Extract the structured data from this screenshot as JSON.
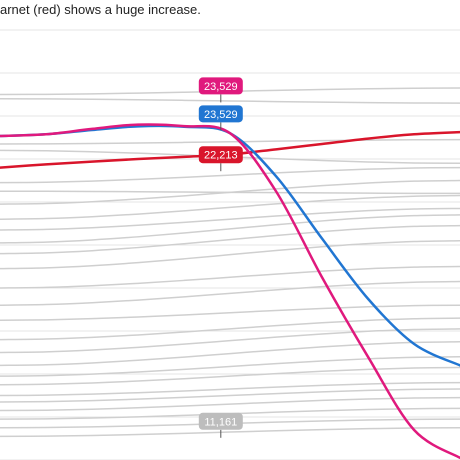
{
  "caption": "arnet (red) shows a huge increase.",
  "chart_data": {
    "type": "line",
    "title": "",
    "xlabel": "",
    "ylabel": "",
    "grid": true,
    "ylim": [
      8000,
      28000
    ],
    "xlim": [
      0,
      10
    ],
    "colors": {
      "highlight": "#e0197d",
      "blue": "#2176d2",
      "red": "#d9152b",
      "background_lines": "#cfcfcf",
      "grid": "#e6e6e6"
    },
    "series": [
      {
        "key": "pink",
        "color": "#e0197d",
        "x": [
          0,
          1,
          2,
          3,
          4,
          5,
          6,
          7,
          8,
          9,
          10
        ],
        "y": [
          23070,
          23150,
          23400,
          23600,
          23529,
          23200,
          20500,
          16500,
          12800,
          9400,
          8100
        ]
      },
      {
        "key": "blue",
        "color": "#2176d2",
        "x": [
          0,
          1,
          2,
          3,
          4,
          5,
          6,
          7,
          8,
          9,
          10
        ],
        "y": [
          23070,
          23150,
          23350,
          23520,
          23500,
          23200,
          21200,
          18300,
          15500,
          13400,
          12400
        ]
      },
      {
        "key": "red",
        "color": "#d9152b",
        "x": [
          0,
          1,
          2,
          3,
          4,
          5,
          6,
          7,
          8,
          9,
          10
        ],
        "y": [
          21600,
          21750,
          21880,
          22000,
          22100,
          22213,
          22450,
          22700,
          22950,
          23150,
          23250
        ]
      }
    ],
    "background_series": [
      {
        "x": [
          0,
          10
        ],
        "y": [
          25000,
          25300
        ]
      },
      {
        "x": [
          0,
          10
        ],
        "y": [
          24800,
          24600
        ]
      },
      {
        "x": [
          0,
          10
        ],
        "y": [
          22700,
          22900
        ]
      },
      {
        "x": [
          0,
          10
        ],
        "y": [
          22400,
          21800
        ]
      },
      {
        "x": [
          0,
          10
        ],
        "y": [
          20900,
          21600
        ]
      },
      {
        "x": [
          0,
          10
        ],
        "y": [
          20500,
          20400
        ]
      },
      {
        "x": [
          0,
          10
        ],
        "y": [
          19900,
          21000
        ]
      },
      {
        "x": [
          0,
          10
        ],
        "y": [
          19200,
          20300
        ]
      },
      {
        "x": [
          0,
          10
        ],
        "y": [
          18700,
          19700
        ]
      },
      {
        "x": [
          0,
          10
        ],
        "y": [
          18100,
          19400
        ]
      },
      {
        "x": [
          0,
          10
        ],
        "y": [
          17600,
          18900
        ]
      },
      {
        "x": [
          0,
          10
        ],
        "y": [
          16900,
          18200
        ]
      },
      {
        "x": [
          0,
          10
        ],
        "y": [
          16000,
          17000
        ]
      },
      {
        "x": [
          0,
          10
        ],
        "y": [
          15200,
          16300
        ]
      },
      {
        "x": [
          0,
          10
        ],
        "y": [
          14500,
          15200
        ]
      },
      {
        "x": [
          0,
          10
        ],
        "y": [
          13600,
          14600
        ]
      },
      {
        "x": [
          0,
          10
        ],
        "y": [
          13000,
          14100
        ]
      },
      {
        "x": [
          0,
          10
        ],
        "y": [
          12400,
          13500
        ]
      },
      {
        "x": [
          0,
          10
        ],
        "y": [
          11900,
          12800
        ]
      },
      {
        "x": [
          0,
          10
        ],
        "y": [
          11500,
          12300
        ]
      },
      {
        "x": [
          0,
          10
        ],
        "y": [
          11000,
          11600
        ]
      },
      {
        "x": [
          0,
          10
        ],
        "y": [
          10700,
          11300
        ]
      },
      {
        "x": [
          0,
          10
        ],
        "y": [
          10300,
          10900
        ]
      },
      {
        "x": [
          0,
          10
        ],
        "y": [
          9900,
          10400
        ]
      },
      {
        "x": [
          0,
          10
        ],
        "y": [
          9500,
          9900
        ]
      },
      {
        "x": [
          0,
          10
        ],
        "y": [
          9100,
          9500
        ]
      }
    ],
    "labels": [
      {
        "text": "23,529",
        "color": "#e0197d",
        "x": 4.8,
        "y": 25400
      },
      {
        "text": "23,529",
        "color": "#2176d2",
        "x": 4.8,
        "y": 24100
      },
      {
        "text": "22,213",
        "color": "#d9152b",
        "x": 4.8,
        "y": 22200
      },
      {
        "text": "11,161",
        "color": "#bdbdbd",
        "x": 4.8,
        "y": 9800
      }
    ]
  }
}
